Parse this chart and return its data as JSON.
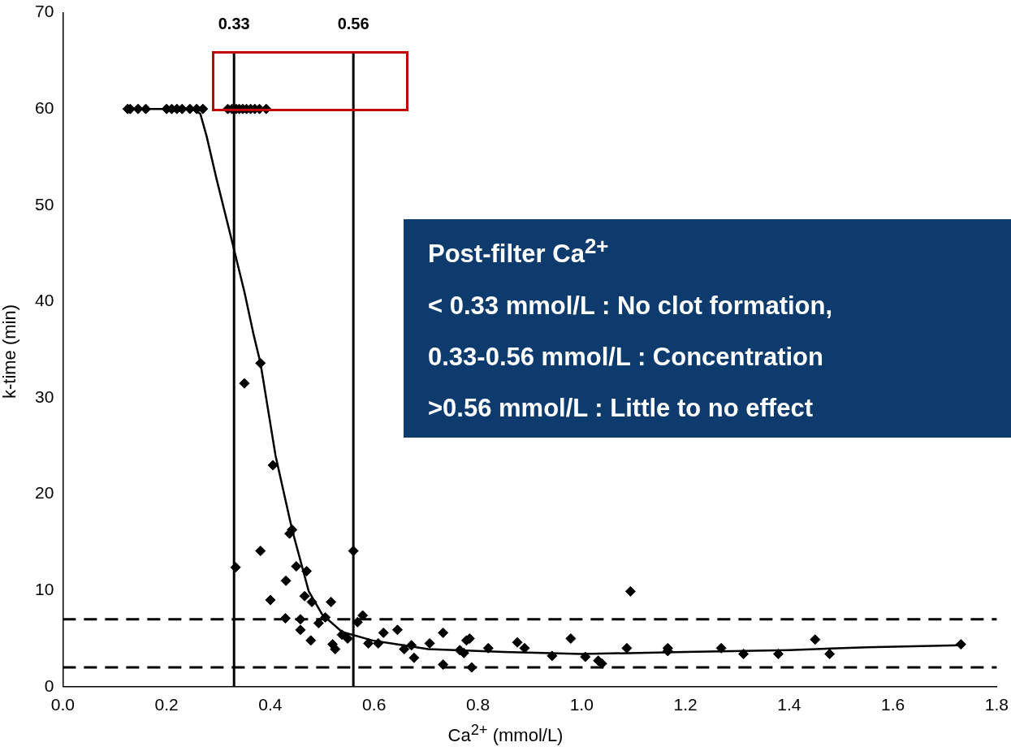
{
  "chart_data": {
    "type": "scatter",
    "xlabel": "Ca$^{2+}$ (mmol/L)",
    "ylabel": "k-time (min)",
    "xlim": [
      0,
      1.8
    ],
    "ylim": [
      0,
      70
    ],
    "xticks": [
      {
        "value": 0,
        "label": "0.0"
      },
      {
        "value": 0.2,
        "label": "0.2"
      },
      {
        "value": 0.4,
        "label": "0.4"
      },
      {
        "value": 0.6,
        "label": "0.6"
      },
      {
        "value": 0.8,
        "label": "0.8"
      },
      {
        "value": 1,
        "label": "1.0"
      },
      {
        "value": 1.2,
        "label": "1.2"
      },
      {
        "value": 1.4,
        "label": "1.4"
      },
      {
        "value": 1.6,
        "label": "1.6"
      },
      {
        "value": 1.8,
        "label": "1.8"
      }
    ],
    "yticks": [
      0,
      10,
      20,
      30,
      40,
      50,
      60,
      70
    ],
    "grid": false,
    "legend": false,
    "series": [
      {
        "color": "#000000",
        "marker": "diamond",
        "x": [
          0.125,
          0.13,
          0.145,
          0.16,
          0.2,
          0.21,
          0.22,
          0.23,
          0.245,
          0.258,
          0.27,
          0.318,
          0.326,
          0.334,
          0.34,
          0.347,
          0.354,
          0.362,
          0.37,
          0.379,
          0.392,
          0.333,
          0.35,
          0.381,
          0.381,
          0.405,
          0.442,
          0.437,
          0.43,
          0.45,
          0.47,
          0.4,
          0.466,
          0.48,
          0.517,
          0.429,
          0.458,
          0.493,
          0.506,
          0.458,
          0.478,
          0.52,
          0.525,
          0.538,
          0.549,
          0.56,
          0.568,
          0.578,
          0.589,
          0.618,
          0.608,
          0.645,
          0.658,
          0.672,
          0.677,
          0.707,
          0.733,
          0.733,
          0.765,
          0.778,
          0.784,
          0.788,
          0.773,
          0.82,
          0.876,
          0.89,
          0.943,
          0.979,
          1.007,
          1.032,
          1.039,
          1.094,
          1.087,
          1.166,
          1.166,
          1.269,
          1.312,
          1.379,
          1.45,
          1.478,
          1.731
        ],
        "values": [
          60,
          60,
          60,
          60,
          60,
          60,
          60,
          60,
          60,
          60,
          60,
          60,
          60,
          60,
          60,
          60,
          60,
          60,
          60,
          60,
          60,
          12.4,
          31.5,
          33.6,
          14.1,
          23,
          16.3,
          15.9,
          11,
          12.5,
          12,
          9,
          9.4,
          8.8,
          8.8,
          7.1,
          7,
          6.6,
          7.2,
          5.9,
          4.8,
          4.4,
          3.9,
          5.4,
          5,
          14.1,
          6.7,
          7.4,
          4.5,
          5.6,
          4.5,
          5.9,
          3.9,
          4.3,
          3,
          4.5,
          5.6,
          2.3,
          3.8,
          4.8,
          5,
          2,
          3.5,
          4,
          4.6,
          4,
          3.2,
          5,
          3.1,
          2.7,
          2.4,
          9.9,
          4,
          3.7,
          4,
          4,
          3.4,
          3.4,
          4.9,
          3.4,
          4.4
        ]
      },
      {
        "type": "line",
        "color": "#000000",
        "x": [
          0.125,
          0.25,
          0.265,
          0.277,
          0.296,
          0.325,
          0.35,
          0.368,
          0.381,
          0.41,
          0.442,
          0.474,
          0.5,
          0.538,
          0.597,
          0.704,
          0.85,
          1.0,
          1.2,
          1.4,
          1.55,
          1.73
        ],
        "values": [
          60,
          60,
          59.5,
          57.2,
          52.8,
          46.5,
          41,
          36.5,
          33.6,
          24,
          16.3,
          9.9,
          7.5,
          5.7,
          4.8,
          3.9,
          3.6,
          3.4,
          3.6,
          3.8,
          4.1,
          4.3
        ]
      }
    ],
    "ref_lines": [
      {
        "axis": "x",
        "value": 0.33,
        "label": "0.33",
        "color": "#000000",
        "line_style": "solid"
      },
      {
        "axis": "x",
        "value": 0.56,
        "label": "0.56",
        "color": "#000000",
        "line_style": "solid"
      },
      {
        "axis": "y",
        "value": 7,
        "color": "#000000",
        "line_style": "dashed"
      },
      {
        "axis": "y",
        "value": 2,
        "color": "#000000",
        "line_style": "dashed"
      }
    ],
    "annotations": [
      "Post-filter Ca$^{2+}$",
      "< 0.33 mmol/L : No clot formation,",
      "0.33-0.56 mmol/L : Concentration",
      ">0.56 mmol/L : Little to no effect"
    ]
  }
}
